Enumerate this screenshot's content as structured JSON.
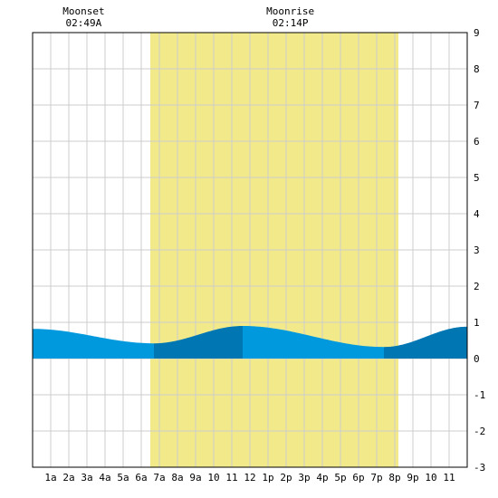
{
  "chart_data": {
    "type": "area",
    "x_unit": "hour",
    "xlim": [
      0,
      24
    ],
    "ylim": [
      -3,
      9
    ],
    "y_ticks": [
      -3,
      -2,
      -1,
      0,
      1,
      2,
      3,
      4,
      5,
      6,
      7,
      8,
      9
    ],
    "x_tick_labels": [
      "1a",
      "2a",
      "3a",
      "4a",
      "5a",
      "6a",
      "7a",
      "8a",
      "9a",
      "10",
      "11",
      "12",
      "1p",
      "2p",
      "3p",
      "4p",
      "5p",
      "6p",
      "7p",
      "8p",
      "9p",
      "10",
      "11"
    ],
    "grid": true,
    "daylight": {
      "start": 6.5,
      "end": 20.2
    },
    "events": [
      {
        "name": "Moonset",
        "time": "02:49A",
        "hour": 2.82
      },
      {
        "name": "Moonrise",
        "time": "02:14P",
        "hour": 14.23
      }
    ],
    "tide_extrema": [
      {
        "hour": 0.0,
        "height": 0.82
      },
      {
        "hour": 6.7,
        "height": 0.42
      },
      {
        "hour": 11.6,
        "height": 0.9
      },
      {
        "hour": 19.4,
        "height": 0.32
      },
      {
        "hour": 24.0,
        "height": 0.88
      }
    ],
    "colors": {
      "daylight": "#f2ea8a",
      "tide_light": "#0099dd",
      "tide_dark": "#0077b3",
      "grid": "#cccccc",
      "frame": "#000000",
      "background": "#ffffff"
    }
  }
}
